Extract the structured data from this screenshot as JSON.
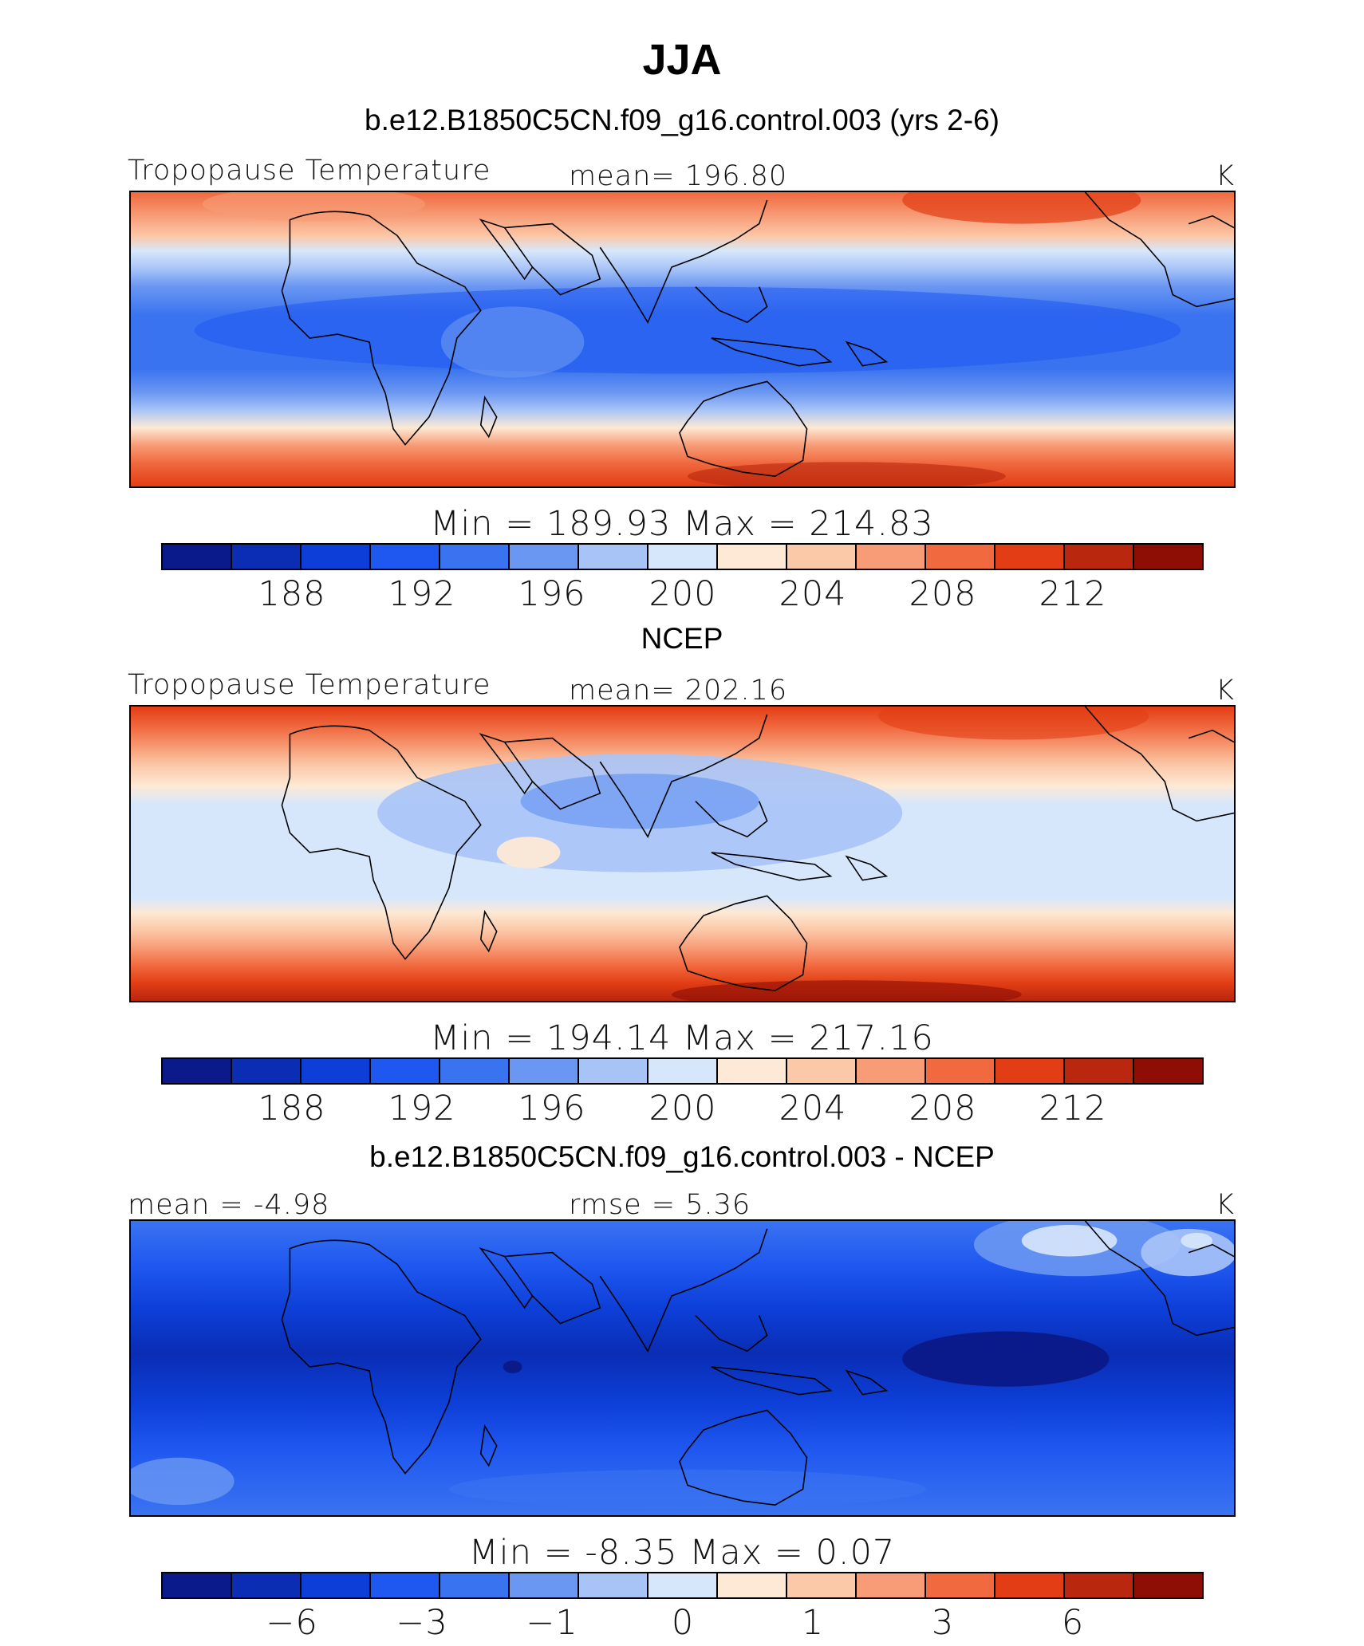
{
  "title": "JJA",
  "palette": [
    "#0b1a8a",
    "#0a2db4",
    "#0d3fd8",
    "#1f58f0",
    "#3a73f0",
    "#6a97f2",
    "#a8c4f7",
    "#d7e7fb",
    "#fde9d5",
    "#fbc8a8",
    "#f79c76",
    "#f1693f",
    "#e23d14",
    "#b8270e",
    "#8e0e05"
  ],
  "panels": [
    {
      "subtitle": "b.e12.B1850C5CN.f09_g16.control.003 (yrs 2-6)",
      "left_label": "Tropopause  Temperature",
      "center_label": "mean=  196.80",
      "units": "K",
      "minmax": "Min  =  189.93  Max  =  214.83",
      "tick_labels": [
        "188",
        "192",
        "196",
        "200",
        "204",
        "208",
        "212"
      ]
    },
    {
      "subtitle": "NCEP",
      "left_label": "Tropopause  Temperature",
      "center_label": "mean=  202.16",
      "units": "K",
      "minmax": "Min  =  194.14  Max  =  217.16",
      "tick_labels": [
        "188",
        "192",
        "196",
        "200",
        "204",
        "208",
        "212"
      ]
    },
    {
      "subtitle": "b.e12.B1850C5CN.f09_g16.control.003 - NCEP",
      "left_label": "mean  =   -4.98",
      "center_label": "rmse  =     5.36",
      "units": "K",
      "minmax": "Min  =    -8.35  Max  =     0.07",
      "tick_labels": [
        "−6",
        "−3",
        "−1",
        "0",
        "1",
        "3",
        "6"
      ]
    }
  ]
}
